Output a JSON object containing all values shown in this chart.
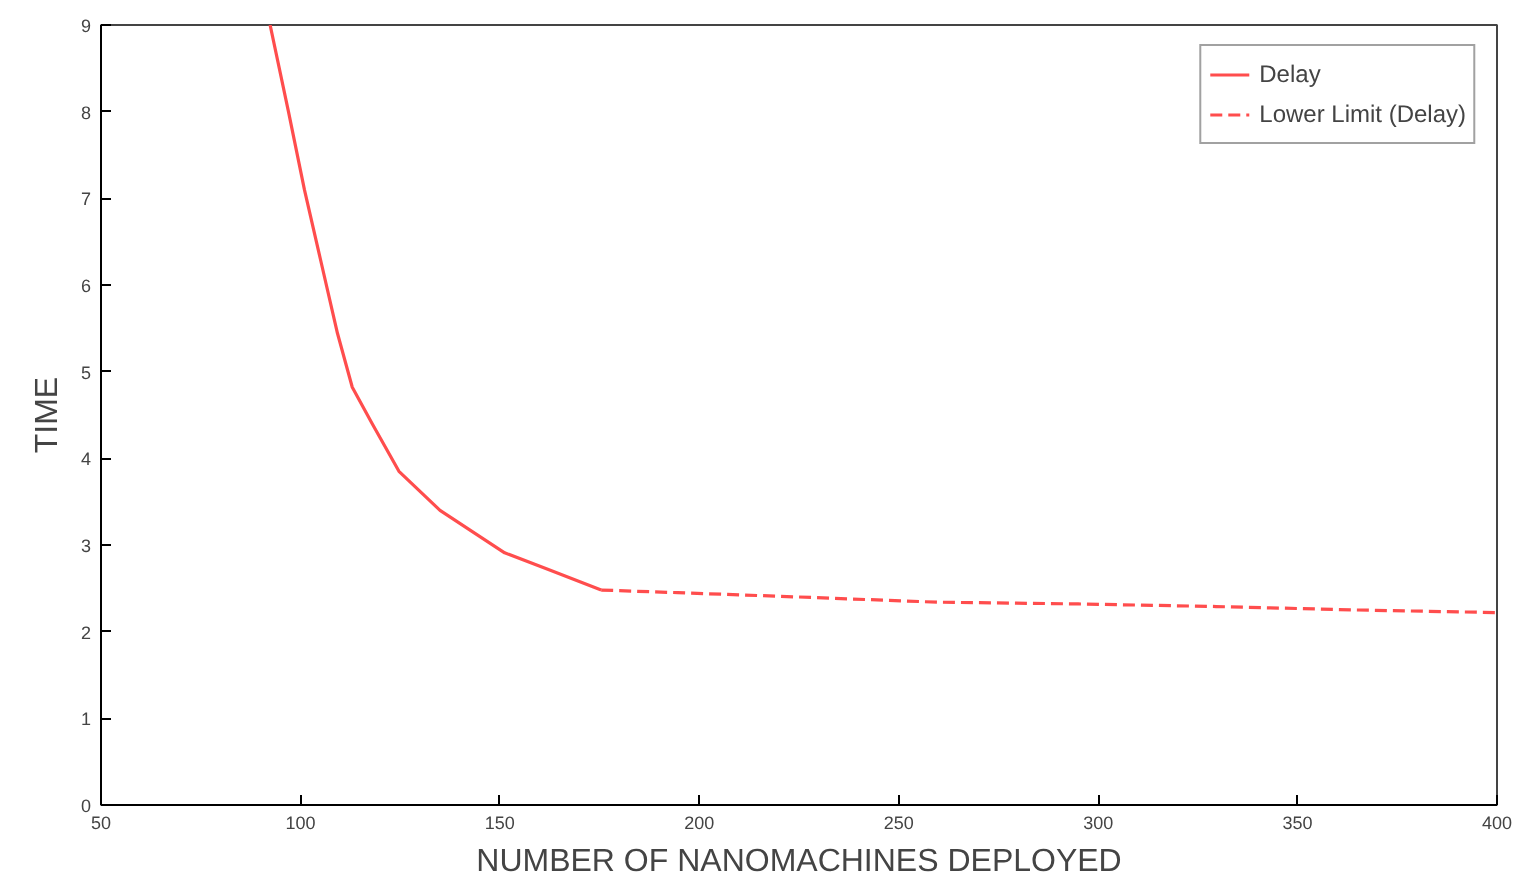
{
  "chart_data": {
    "type": "line",
    "xlabel": "NUMBER OF NANOMACHINES DEPLOYED",
    "ylabel": "TIME",
    "xlim": [
      50,
      400
    ],
    "ylim": [
      0,
      9
    ],
    "xticks": [
      50,
      100,
      150,
      200,
      250,
      300,
      350,
      400
    ],
    "yticks": [
      0,
      1,
      2,
      3,
      4,
      5,
      6,
      7,
      8,
      9
    ],
    "grid": false,
    "legend": "top right",
    "marker": "none",
    "series": [
      {
        "name": "Delay",
        "color": "#ff4d4d",
        "line_style": "solid",
        "x": [
          92.4,
          97,
          101,
          105,
          109.3,
          113,
          118,
          124.7,
          135,
          151.2,
          162,
          175.4
        ],
        "values": [
          9,
          8,
          7.1,
          6.3,
          5.44,
          4.82,
          4.4,
          3.85,
          3.4,
          2.91,
          2.72,
          2.48
        ]
      },
      {
        "name": "Lower Limit (Delay)",
        "color": "#ff4d4d",
        "line_style": "dashed",
        "x": [
          175.4,
          194.6,
          225,
          259.7,
          295,
          329.6,
          365,
          400
        ],
        "values": [
          2.48,
          2.45,
          2.4,
          2.34,
          2.32,
          2.29,
          2.25,
          2.22
        ]
      }
    ]
  }
}
